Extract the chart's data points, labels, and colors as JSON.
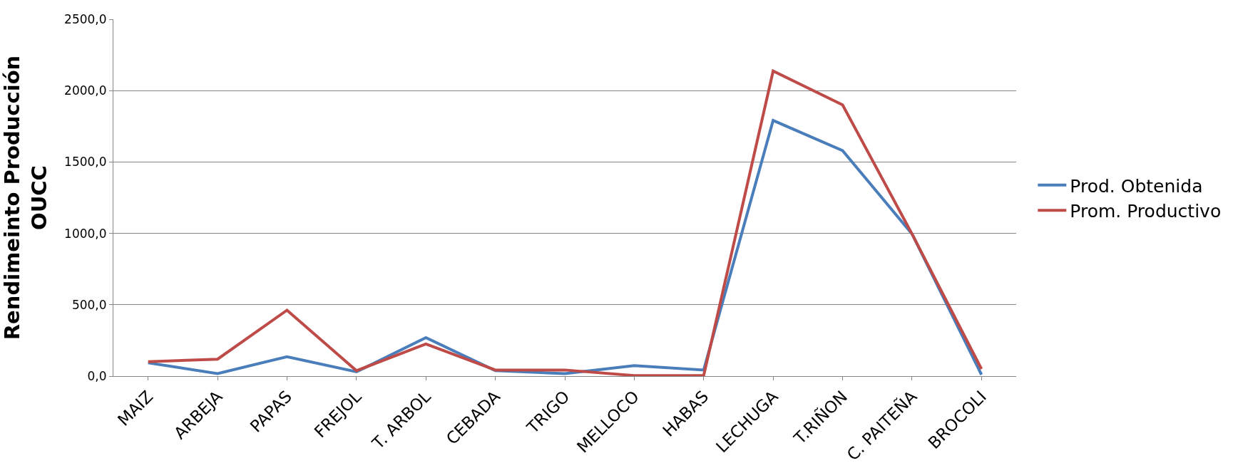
{
  "chart_data": {
    "type": "line",
    "ylabel": "Rendimeinto Producción\nOUCC",
    "categories": [
      "MAIZ",
      "ARBEJA",
      "PAPAS",
      "FREJOL",
      "T. ARBOL",
      "CEBADA",
      "TRIGO",
      "MELLOCO",
      "HABAS",
      "LECHUGA",
      "T.RIÑON",
      "C. PAITEÑA",
      "BROCOLI"
    ],
    "series": [
      {
        "name": "Prod. Obtenida",
        "color": "#4a7ebb",
        "values": [
          93,
          18,
          136,
          30,
          270,
          38,
          18,
          74,
          43,
          1791,
          1580,
          996,
          10
        ]
      },
      {
        "name": "Prom. Productivo",
        "color": "#be4b48",
        "values": [
          101,
          119,
          462,
          38,
          225,
          43,
          43,
          4,
          4,
          2137,
          1900,
          996,
          50
        ]
      }
    ],
    "ylim": [
      0,
      2500
    ],
    "yticks": [
      {
        "value": 0,
        "label": "0,0"
      },
      {
        "value": 500,
        "label": "500,0"
      },
      {
        "value": 1000,
        "label": "1000,0"
      },
      {
        "value": 1500,
        "label": "1500,0"
      },
      {
        "value": 2000,
        "label": "2000,0"
      },
      {
        "value": 2500,
        "label": "2500,0"
      }
    ],
    "grid": "y",
    "legend": "right",
    "marker": "none",
    "line_style": "solid"
  }
}
